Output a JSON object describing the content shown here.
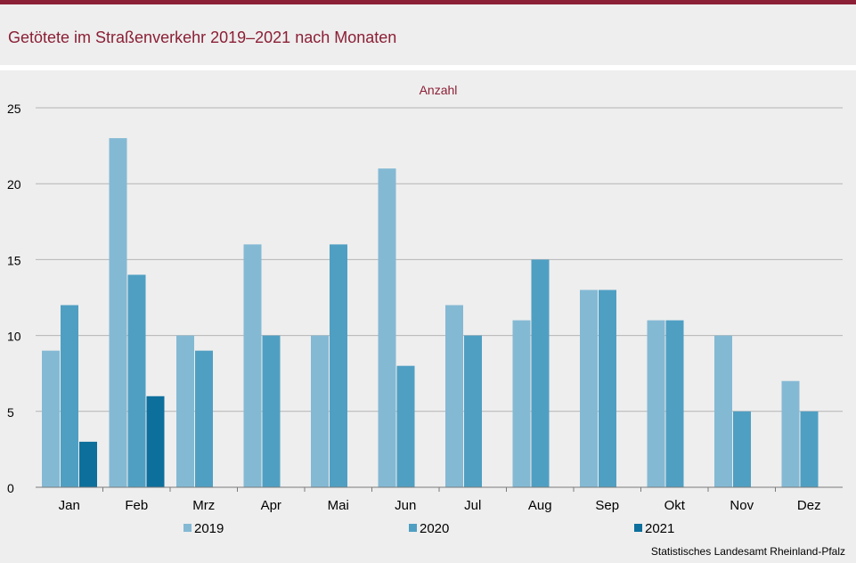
{
  "header": {
    "title": "Getötete im Straßenverkehr 2019–2021 nach Monaten"
  },
  "footer": {
    "source": "Statistisches Landesamt  Rheinland-Pfalz"
  },
  "chart_data": {
    "type": "bar",
    "title": "Getötete im Straßenverkehr 2019–2021 nach Monaten",
    "ylabel": "Anzahl",
    "xlabel": "",
    "ylim": [
      0,
      25
    ],
    "yticks": [
      0,
      5,
      10,
      15,
      20,
      25
    ],
    "grid": true,
    "legend_position": "bottom",
    "categories": [
      "Jan",
      "Feb",
      "Mrz",
      "Apr",
      "Mai",
      "Jun",
      "Jul",
      "Aug",
      "Sep",
      "Okt",
      "Nov",
      "Dez"
    ],
    "series": [
      {
        "name": "2019",
        "color": "#84b9d4",
        "values": [
          9,
          23,
          10,
          16,
          10,
          21,
          12,
          11,
          13,
          11,
          10,
          7
        ]
      },
      {
        "name": "2020",
        "color": "#4f9fc3",
        "values": [
          12,
          14,
          9,
          10,
          16,
          8,
          10,
          15,
          13,
          11,
          5,
          5
        ]
      },
      {
        "name": "2021",
        "color": "#0d6f9c",
        "values": [
          3,
          6,
          null,
          null,
          null,
          null,
          null,
          null,
          null,
          null,
          null,
          null
        ]
      }
    ]
  }
}
